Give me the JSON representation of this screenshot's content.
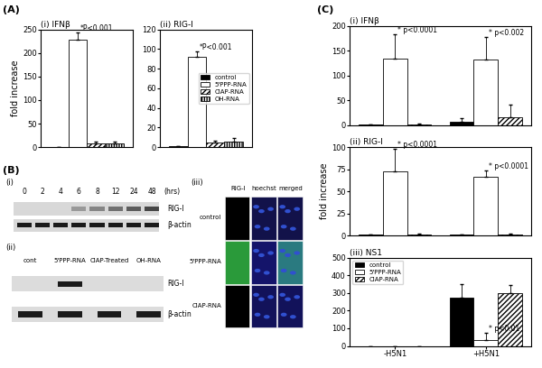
{
  "panel_labels": [
    "(A)",
    "(B)",
    "(C)"
  ],
  "chart_data": [
    {
      "type": "bar",
      "title": "(i) IFNβ",
      "y_label": "fold increase",
      "categories": [
        null
      ],
      "series": [
        {
          "color": "#000000",
          "values": [
            1
          ],
          "errors": [
            0
          ]
        },
        {
          "color": "#ffffff",
          "values": [
            228
          ],
          "errors": [
            15
          ]
        },
        {
          "color": "#ffffff",
          "values": [
            8
          ],
          "errors": [
            3
          ]
        },
        {
          "color": "#ffffff",
          "values": [
            8
          ],
          "errors": [
            3
          ]
        }
      ],
      "ylim": [
        0,
        250
      ],
      "yticks": [
        0,
        50,
        100,
        150,
        200,
        250
      ],
      "tick_labels": "y",
      "annotations": [
        {
          "text": "*P<0.001",
          "series": 1,
          "category": 0
        }
      ]
    },
    {
      "type": "bar",
      "title": "(ii) RIG-I",
      "categories": [
        null
      ],
      "series": [
        {
          "name": "control",
          "color": "#000000",
          "values": [
            1
          ],
          "errors": [
            0
          ]
        },
        {
          "name": "5'PPP-RNA",
          "color": "#ffffff",
          "values": [
            92
          ],
          "errors": [
            6
          ]
        },
        {
          "name": "CIAP-RNA",
          "color": "#ffffff",
          "values": [
            5
          ],
          "errors": [
            2
          ]
        },
        {
          "name": "OH-RNA",
          "color": "#ffffff",
          "values": [
            6
          ],
          "errors": [
            3
          ]
        }
      ],
      "ylim": [
        0,
        120
      ],
      "yticks": [
        0,
        20,
        40,
        60,
        80,
        100,
        120
      ],
      "tick_labels": "y",
      "legend": "center right",
      "annotations": [
        {
          "text": "*P<0.001",
          "series": 1,
          "category": 0
        }
      ]
    },
    {
      "type": "bar",
      "title": "(i) IFNβ",
      "categories": [
        null,
        null
      ],
      "series": [
        {
          "color": "#000000",
          "values": [
            1,
            6
          ],
          "errors": [
            1,
            8
          ]
        },
        {
          "color": "#ffffff",
          "values": [
            133,
            132
          ],
          "errors": [
            50,
            45
          ]
        },
        {
          "color": "#ffffff",
          "values": [
            2,
            16
          ],
          "errors": [
            2,
            25
          ]
        }
      ],
      "ylim": [
        0,
        200
      ],
      "yticks": [
        0,
        50,
        100,
        150,
        200
      ],
      "tick_labels": "y",
      "annotations": [
        {
          "text": "* p<0.0001",
          "series": 1,
          "category": 0
        },
        {
          "text": "* p<0.002",
          "series": 1,
          "category": 1
        }
      ]
    },
    {
      "type": "bar",
      "title": "(ii) RIG-I",
      "y_label": "fold increase",
      "categories": [
        null,
        null
      ],
      "series": [
        {
          "color": "#000000",
          "values": [
            1,
            1
          ],
          "errors": [
            0,
            0
          ]
        },
        {
          "color": "#ffffff",
          "values": [
            73,
            66
          ],
          "errors": [
            25,
            8
          ]
        },
        {
          "color": "#ffffff",
          "values": [
            1,
            1
          ],
          "errors": [
            1,
            1
          ]
        }
      ],
      "ylim": [
        0,
        100
      ],
      "yticks": [
        0,
        25,
        50,
        75,
        100
      ],
      "tick_labels": "y",
      "annotations": [
        {
          "text": "* p<0.0001",
          "series": 1,
          "category": 0
        },
        {
          "text": "* p<0.0001",
          "series": 1,
          "category": 1
        }
      ]
    },
    {
      "type": "bar",
      "title": "(iii) NS1",
      "categories": [
        "-H5N1",
        "+H5N1"
      ],
      "series": [
        {
          "name": "control",
          "color": "#000000",
          "values": [
            0,
            272
          ],
          "errors": [
            0,
            80
          ]
        },
        {
          "name": "5'PPP-RNA",
          "color": "#ffffff",
          "values": [
            0,
            33
          ],
          "errors": [
            0,
            40
          ]
        },
        {
          "name": "CIAP-RNA",
          "color": "#ffffff",
          "values": [
            0,
            300
          ],
          "errors": [
            0,
            45
          ]
        }
      ],
      "ylim": [
        0,
        500
      ],
      "yticks": [
        0,
        100,
        200,
        300,
        400,
        500
      ],
      "legend": "upper left",
      "annotations": [
        {
          "text": "* p<0.01",
          "series": 1,
          "category": 1
        }
      ]
    }
  ],
  "blots": {
    "i": {
      "label": "(i)",
      "lanes": [
        "0",
        "2",
        "4",
        "6",
        "8",
        "12",
        "24",
        "48"
      ],
      "unit": "(hrs)",
      "rows": [
        "RIG-I",
        "β-actin"
      ]
    },
    "ii": {
      "label": "(ii)",
      "lanes": [
        "cont",
        "5'PPP-RNA",
        "CIAP-Treated",
        "OH-RNA"
      ],
      "rows": [
        "RIG-I",
        "β-actin"
      ]
    },
    "iii": {
      "label": "(iii)",
      "columns": [
        "RIG-I",
        "hoechst",
        "merged"
      ],
      "rows": [
        "control",
        "5'PPP-RNA",
        "CIAP-RNA"
      ]
    }
  }
}
